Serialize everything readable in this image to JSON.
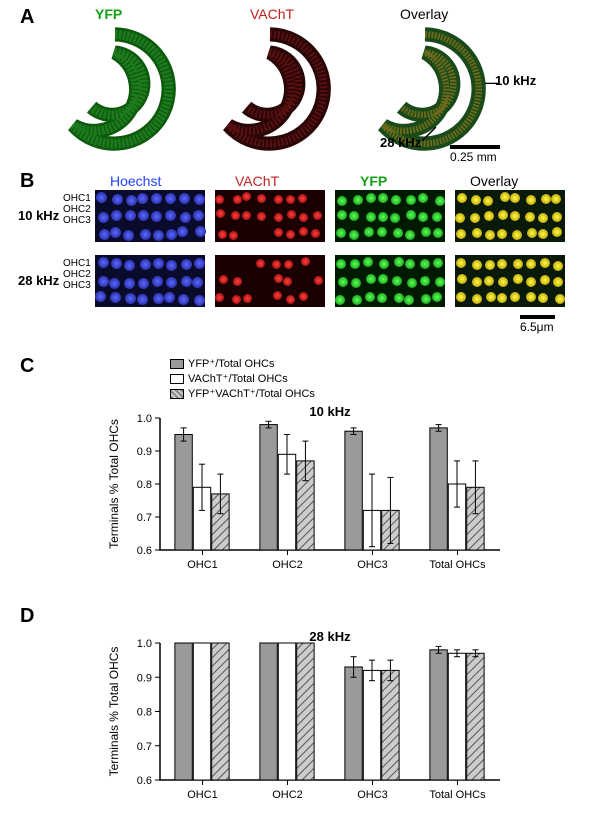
{
  "panelA": {
    "label": "A",
    "columns": [
      {
        "title": "YFP",
        "color": "#16a016"
      },
      {
        "title": "VAChT",
        "color": "#c02020"
      },
      {
        "title": "Overlay",
        "color": "#000000"
      }
    ],
    "annot10": "10 kHz",
    "annot28": "28 kHz",
    "scalebar": "0.25 mm"
  },
  "panelB": {
    "label": "B",
    "rowLabelsLeft": "OHC1\nOHC2\nOHC3",
    "rows": [
      {
        "freq": "10 kHz"
      },
      {
        "freq": "28 kHz"
      }
    ],
    "columns": [
      {
        "title": "Hoechst",
        "color": "#2040ff"
      },
      {
        "title": "VAChT",
        "color": "#c02020"
      },
      {
        "title": "YFP",
        "color": "#16a016"
      },
      {
        "title": "Overlay",
        "color": "#000000"
      }
    ],
    "scalebar": "6.5μm"
  },
  "legend": {
    "items": [
      {
        "label": "YFP⁺/Total OHCs",
        "fill": "#9a9a9a",
        "pattern": "none"
      },
      {
        "label": "VAChT⁺/Total OHCs",
        "fill": "#ffffff",
        "pattern": "none"
      },
      {
        "label": "YFP⁺VAChT⁺/Total OHCs",
        "fill": "#cccccc",
        "pattern": "hatch"
      }
    ]
  },
  "panelC": {
    "label": "C",
    "title": "10 kHz",
    "ylabel": "Terminals % Total OHCs",
    "ylim": [
      0.6,
      1.0
    ],
    "yticks": [
      0.6,
      0.7,
      0.8,
      0.9,
      1.0
    ],
    "categories": [
      "OHC1",
      "OHC2",
      "OHC3",
      "Total OHCs"
    ],
    "series": [
      {
        "key": "yfp",
        "values": [
          0.95,
          0.98,
          0.96,
          0.97
        ],
        "err": [
          0.02,
          0.01,
          0.01,
          0.01
        ],
        "fill": "#9a9a9a",
        "pattern": "none"
      },
      {
        "key": "vacht",
        "values": [
          0.79,
          0.89,
          0.72,
          0.8
        ],
        "err": [
          0.07,
          0.06,
          0.11,
          0.07
        ],
        "fill": "#ffffff",
        "pattern": "none"
      },
      {
        "key": "both",
        "values": [
          0.77,
          0.87,
          0.72,
          0.79
        ],
        "err": [
          0.06,
          0.06,
          0.1,
          0.08
        ],
        "fill": "#cccccc",
        "pattern": "hatch"
      }
    ],
    "bar_width": 0.25,
    "axis_color": "#000000",
    "font_size_axis": 11
  },
  "panelD": {
    "label": "D",
    "title": "28 kHz",
    "ylabel": "Terminals % Total OHCs",
    "ylim": [
      0.6,
      1.0
    ],
    "yticks": [
      0.6,
      0.7,
      0.8,
      0.9,
      1.0
    ],
    "categories": [
      "OHC1",
      "OHC2",
      "OHC3",
      "Total OHCs"
    ],
    "series": [
      {
        "key": "yfp",
        "values": [
          1.0,
          1.0,
          0.93,
          0.98
        ],
        "err": [
          0,
          0,
          0.03,
          0.01
        ],
        "fill": "#9a9a9a",
        "pattern": "none"
      },
      {
        "key": "vacht",
        "values": [
          1.0,
          1.0,
          0.92,
          0.97
        ],
        "err": [
          0,
          0,
          0.03,
          0.01
        ],
        "fill": "#ffffff",
        "pattern": "none"
      },
      {
        "key": "both",
        "values": [
          1.0,
          1.0,
          0.92,
          0.97
        ],
        "err": [
          0,
          0,
          0.03,
          0.01
        ],
        "fill": "#cccccc",
        "pattern": "hatch"
      }
    ],
    "bar_width": 0.25,
    "axis_color": "#000000",
    "font_size_axis": 11
  }
}
